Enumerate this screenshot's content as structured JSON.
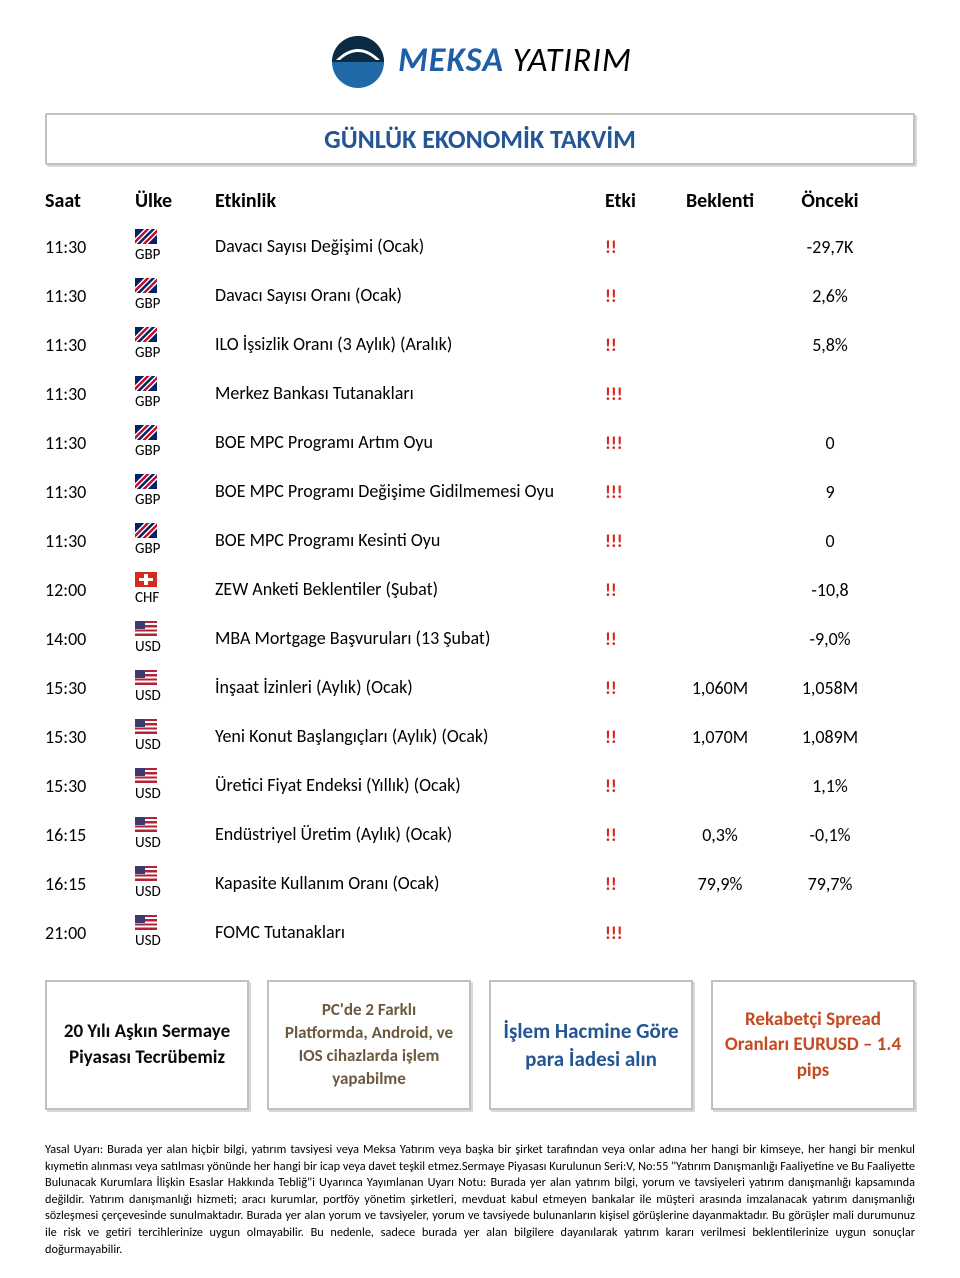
{
  "brand": {
    "name_part1": "MEKSA",
    "name_part2": " YATIRIM",
    "logo_bg": "#1f6aa6",
    "logo_dark": "#0c2a42"
  },
  "title": "GÜNLÜK EKONOMİK TAKVİM",
  "colors": {
    "title_text": "#235696",
    "impact_red": "#d9241f",
    "border_gray": "#c0c0c0"
  },
  "header": {
    "time": "Saat",
    "country": "Ülke",
    "event": "Etkinlik",
    "impact": "Etki",
    "expected": "Beklenti",
    "previous": "Önceki"
  },
  "rows": [
    {
      "time": "11:30",
      "flag": "uk",
      "code": "GBP",
      "event": "Davacı Sayısı Değişimi (Ocak)",
      "impact": "!!",
      "expected": "",
      "previous": "-29,7K"
    },
    {
      "time": "11:30",
      "flag": "uk",
      "code": "GBP",
      "event": "Davacı Sayısı Oranı (Ocak)",
      "impact": "!!",
      "expected": "",
      "previous": "2,6%"
    },
    {
      "time": "11:30",
      "flag": "uk",
      "code": "GBP",
      "event": "ILO İşsizlik Oranı (3 Aylık) (Aralık)",
      "impact": "!!",
      "expected": "",
      "previous": "5,8%"
    },
    {
      "time": "11:30",
      "flag": "uk",
      "code": "GBP",
      "event": "Merkez Bankası Tutanakları",
      "impact": "!!!",
      "expected": "",
      "previous": ""
    },
    {
      "time": "11:30",
      "flag": "uk",
      "code": "GBP",
      "event": "BOE MPC Programı Artım Oyu",
      "impact": "!!!",
      "expected": "",
      "previous": "0"
    },
    {
      "time": "11:30",
      "flag": "uk",
      "code": "GBP",
      "event": "BOE MPC Programı Değişime Gidilmemesi Oyu",
      "impact": "!!!",
      "expected": "",
      "previous": "9"
    },
    {
      "time": "11:30",
      "flag": "uk",
      "code": "GBP",
      "event": "BOE MPC Programı Kesinti Oyu",
      "impact": "!!!",
      "expected": "",
      "previous": "0"
    },
    {
      "time": "12:00",
      "flag": "ch",
      "code": "CHF",
      "event": "ZEW Anketi Beklentiler (Şubat)",
      "impact": "!!",
      "expected": "",
      "previous": "-10,8"
    },
    {
      "time": "14:00",
      "flag": "us",
      "code": "USD",
      "event": "MBA Mortgage Başvuruları (13 Şubat)",
      "impact": "!!",
      "expected": "",
      "previous": "-9,0%"
    },
    {
      "time": "15:30",
      "flag": "us",
      "code": "USD",
      "event": "İnşaat İzinleri (Aylık) (Ocak)",
      "impact": "!!",
      "expected": "1,060M",
      "previous": "1,058M"
    },
    {
      "time": "15:30",
      "flag": "us",
      "code": "USD",
      "event": "Yeni Konut Başlangıçları (Aylık) (Ocak)",
      "impact": "!!",
      "expected": "1,070M",
      "previous": "1,089M"
    },
    {
      "time": "15:30",
      "flag": "us",
      "code": "USD",
      "event": "Üretici Fiyat Endeksi (Yıllık) (Ocak)",
      "impact": "!!",
      "expected": "",
      "previous": "1,1%"
    },
    {
      "time": "16:15",
      "flag": "us",
      "code": "USD",
      "event": "Endüstriyel Üretim (Aylık) (Ocak)",
      "impact": "!!",
      "expected": "0,3%",
      "previous": "-0,1%"
    },
    {
      "time": "16:15",
      "flag": "us",
      "code": "USD",
      "event": "Kapasite Kullanım Oranı (Ocak)",
      "impact": "!!",
      "expected": "79,9%",
      "previous": "79,7%"
    },
    {
      "time": "21:00",
      "flag": "us",
      "code": "USD",
      "event": "FOMC Tutanakları",
      "impact": "!!!",
      "expected": "",
      "previous": ""
    }
  ],
  "promos": {
    "p1": "20 Yılı Aşkın Sermaye Piyasası Tecrübemiz",
    "p2": "PC'de 2 Farklı Platformda, Android, ve IOS cihazlarda işlem yapabilme",
    "p3": "İşlem Hacmine Göre para İadesi alın",
    "p4": "Rekabetçi Spread Oranları EURUSD – 1.4 pips"
  },
  "disclaimer": "Yasal Uyarı: Burada yer alan hiçbir bilgi, yatırım tavsiyesi veya Meksa Yatırım veya başka bir şirket tarafından veya onlar adına her hangi bir kimseye, her hangi bir menkul kıymetin alınması veya satılması yönünde her hangi bir icap veya davet teşkil etmez.Sermaye Piyasası Kurulunun Seri:V, No:55 \"Yatırım Danışmanlığı Faaliyetine ve Bu Faaliyette Bulunacak Kurumlara İlişkin Esaslar Hakkında Tebliğ\"i Uyarınca Yayımlanan Uyarı Notu: Burada yer alan yatırım bilgi, yorum ve tavsiyeleri yatırım danışmanlığı kapsamında değildir. Yatırım danışmanlığı hizmeti; aracı kurumlar, portföy yönetim şirketleri, mevduat kabul etmeyen bankalar ile müşteri arasında imzalanacak yatırım danışmanlığı sözleşmesi çerçevesinde sunulmaktadır. Burada yer alan yorum ve tavsiyeler, yorum ve tavsiyede bulunanların kişisel görüşlerine dayanmaktadır. Bu görüşler mali durumunuz ile risk ve getiri tercihlerinize uygun olmayabilir. Bu nedenle, sadece burada yer alan bilgilere dayanılarak yatırım kararı verilmesi beklentilerinize uygun sonuçlar doğurmayabilir."
}
